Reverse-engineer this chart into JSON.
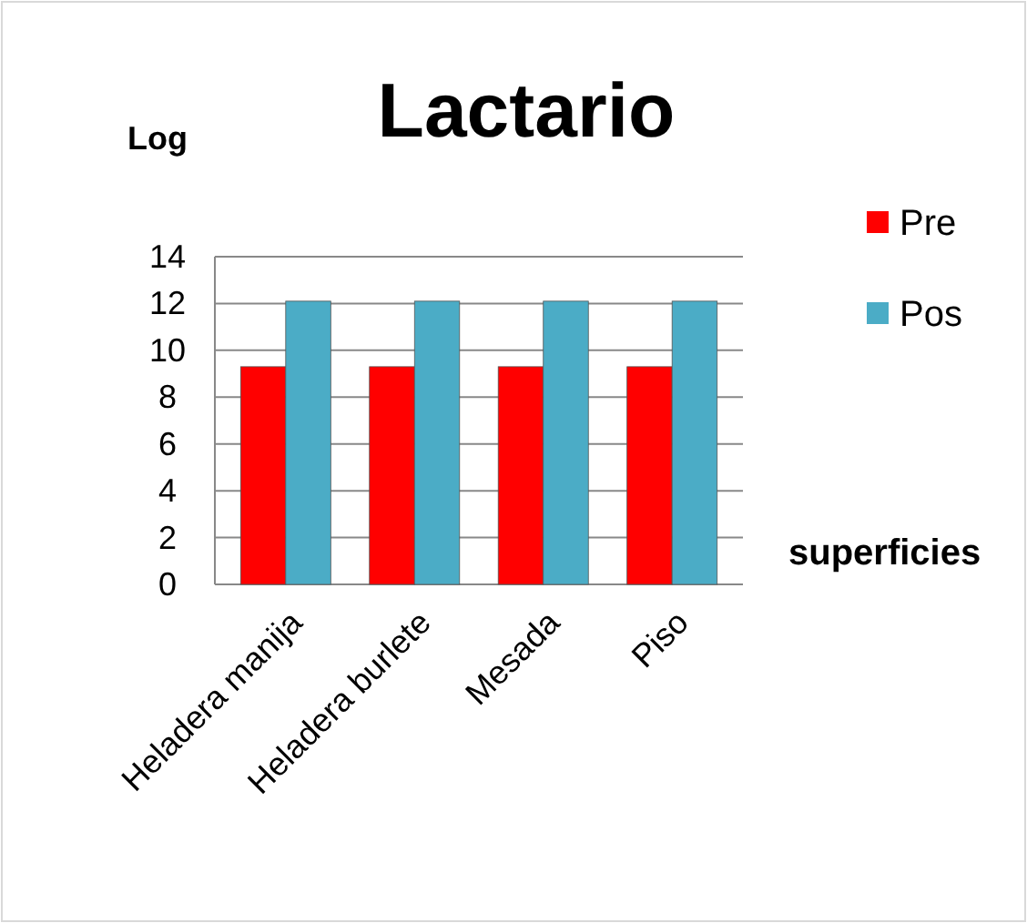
{
  "chart_data": {
    "type": "bar",
    "title": "Lactario",
    "ylabel": "Log",
    "xlabel": "superficies",
    "categories": [
      "Heladera manija",
      "Heladera burlete",
      "Mesada",
      "Piso"
    ],
    "series": [
      {
        "name": "Pre",
        "color": "#ff0000",
        "values": [
          9.3,
          9.3,
          9.3,
          9.3
        ]
      },
      {
        "name": "Pos",
        "color": "#4bacc6",
        "values": [
          12.1,
          12.1,
          12.1,
          12.1
        ]
      }
    ],
    "ylim": [
      0,
      14
    ],
    "yticks": [
      0,
      2,
      4,
      6,
      8,
      10,
      12,
      14
    ],
    "grid": "y",
    "legend": "right"
  }
}
